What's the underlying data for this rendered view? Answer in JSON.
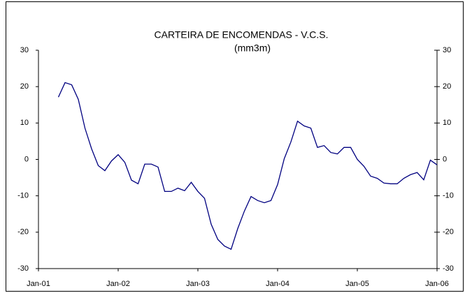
{
  "chart_data": {
    "type": "line",
    "title": "CARTEIRA DE ENCOMENDAS - V.C.S.",
    "subtitle": "(mm3m)",
    "x": [
      "2001-04",
      "2001-05",
      "2001-06",
      "2001-07",
      "2001-08",
      "2001-09",
      "2001-10",
      "2001-11",
      "2001-12",
      "2002-01",
      "2002-02",
      "2002-03",
      "2002-04",
      "2002-05",
      "2002-06",
      "2002-07",
      "2002-08",
      "2002-09",
      "2002-10",
      "2002-11",
      "2002-12",
      "2003-01",
      "2003-02",
      "2003-03",
      "2003-04",
      "2003-05",
      "2003-06",
      "2003-07",
      "2003-08",
      "2003-09",
      "2003-10",
      "2003-11",
      "2003-12",
      "2004-01",
      "2004-02",
      "2004-03",
      "2004-04",
      "2004-05",
      "2004-06",
      "2004-07",
      "2004-08",
      "2004-09",
      "2004-10",
      "2004-11",
      "2004-12",
      "2005-01",
      "2005-02",
      "2005-03",
      "2005-04",
      "2005-05",
      "2005-06",
      "2005-07",
      "2005-08",
      "2005-09",
      "2005-10",
      "2005-11",
      "2005-12",
      "2006-01"
    ],
    "series": [
      {
        "color": "#000080",
        "values": [
          17.1,
          21.1,
          20.5,
          16.5,
          8.6,
          2.9,
          -1.7,
          -3.1,
          -0.4,
          1.3,
          -0.8,
          -5.7,
          -6.7,
          -1.3,
          -1.3,
          -2.1,
          -8.8,
          -8.8,
          -7.9,
          -8.6,
          -6.3,
          -8.8,
          -10.7,
          -17.8,
          -22.0,
          -23.8,
          -24.7,
          -19.0,
          -14.2,
          -10.2,
          -11.3,
          -11.9,
          -11.3,
          -6.9,
          0.2,
          4.8,
          10.5,
          9.2,
          8.6,
          3.3,
          3.8,
          1.9,
          1.5,
          3.3,
          3.3,
          0,
          -1.9,
          -4.6,
          -5.2,
          -6.5,
          -6.7,
          -6.7,
          -5.2,
          -4.2,
          -3.6,
          -5.6,
          -0.2,
          -1.5
        ]
      }
    ],
    "xlim": [
      "2001-01",
      "2006-01"
    ],
    "xticks": [
      {
        "value": "2001-01",
        "label": "Jan-01"
      },
      {
        "value": "2002-01",
        "label": "Jan-02"
      },
      {
        "value": "2003-01",
        "label": "Jan-03"
      },
      {
        "value": "2004-01",
        "label": "Jan-04"
      },
      {
        "value": "2005-01",
        "label": "Jan-05"
      },
      {
        "value": "2006-01",
        "label": "Jan-06"
      }
    ],
    "ylim": [
      -30,
      30
    ],
    "yticks": [
      -30,
      -20,
      -10,
      0,
      10,
      20,
      30
    ],
    "y2lim": [
      -30,
      30
    ],
    "y2ticks": [
      -30,
      -20,
      -10,
      0,
      10,
      20,
      30
    ],
    "grid": false
  }
}
